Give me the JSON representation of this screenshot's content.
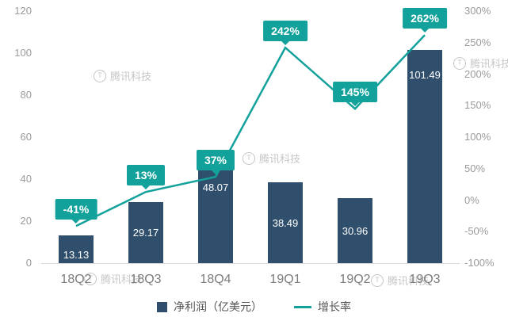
{
  "watermark": {
    "text": "腾讯科技"
  },
  "chart_data": {
    "type": "combo-bar-line",
    "title": "",
    "categories": [
      "18Q2",
      "18Q3",
      "18Q4",
      "19Q1",
      "19Q2",
      "19Q3"
    ],
    "series": [
      {
        "name": "净利润（亿美元）",
        "type": "bar",
        "axis": "left",
        "color": "#2f4f6d",
        "values": [
          13.13,
          29.17,
          48.07,
          38.49,
          30.96,
          101.49
        ],
        "labels": [
          "13.13",
          "29.17",
          "48.07",
          "38.49",
          "30.96",
          "101.49"
        ]
      },
      {
        "name": "增长率",
        "type": "line",
        "axis": "right",
        "color": "#12a19b",
        "values": [
          -41,
          13,
          37,
          242,
          145,
          262
        ],
        "labels": [
          "-41%",
          "13%",
          "37%",
          "242%",
          "145%",
          "262%"
        ]
      }
    ],
    "left_axis": {
      "min": 0,
      "max": 120,
      "step": 20,
      "ticks": [
        "0",
        "20",
        "40",
        "60",
        "80",
        "100",
        "120"
      ]
    },
    "right_axis": {
      "min": -100,
      "max": 300,
      "step": 50,
      "ticks": [
        "-100%",
        "-50%",
        "0%",
        "50%",
        "100%",
        "150%",
        "200%",
        "250%",
        "300%"
      ]
    },
    "legend_position": "bottom",
    "grid": false
  }
}
